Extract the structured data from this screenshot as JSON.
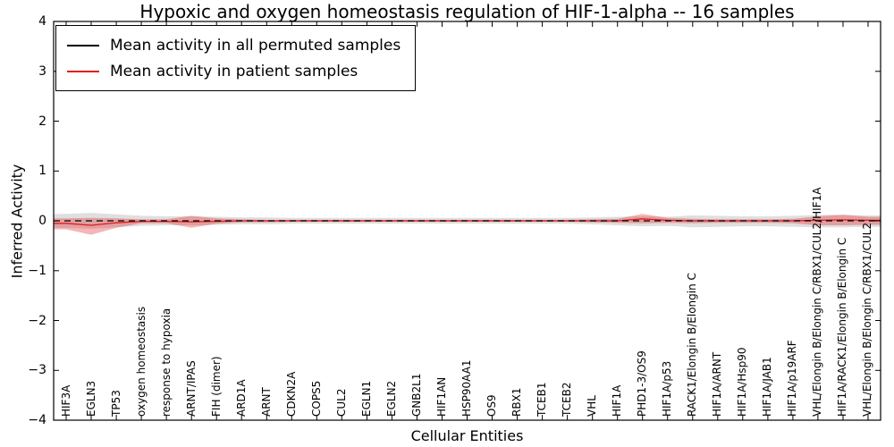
{
  "figure": {
    "title": "Hypoxic and oxygen homeostasis regulation of HIF-1-alpha -- 16 samples",
    "xlabel": "Cellular Entities",
    "ylabel": "Inferred Activity"
  },
  "legend": {
    "items": [
      {
        "label": "Mean activity in all permuted samples",
        "color": "#000000"
      },
      {
        "label": "Mean activity in patient samples",
        "color": "#e31a1c"
      }
    ]
  },
  "chart_data": {
    "type": "line",
    "title": "Hypoxic and oxygen homeostasis regulation of HIF-1-alpha -- 16 samples",
    "xlabel": "Cellular Entities",
    "ylabel": "Inferred Activity",
    "ylim": [
      -4,
      4
    ],
    "yticks": [
      -4,
      -3,
      -2,
      -1,
      0,
      1,
      2,
      3,
      4
    ],
    "grid": false,
    "legend_position": "upper left",
    "categories": [
      "HIF3A",
      "EGLN3",
      "TP53",
      "oxygen homeostasis",
      "response to hypoxia",
      "ARNT/IPAS",
      "FIH (dimer)",
      "ARD1A",
      "ARNT",
      "CDKN2A",
      "COPS5",
      "CUL2",
      "EGLN1",
      "EGLN2",
      "GNB2L1",
      "HIF1AN",
      "HSP90AA1",
      "OS9",
      "RBX1",
      "TCEB1",
      "TCEB2",
      "VHL",
      "HIF1A",
      "PHD1-3/OS9",
      "HIF1A/p53",
      "RACK1/Elongin B/Elongin C",
      "HIF1A/ARNT",
      "HIF1A/Hsp90",
      "HIF1A/JAB1",
      "HIF1A/p19ARF",
      "VHL/Elongin B/Elongin C/RBX1/CUL2/HIF1A",
      "HIF1A/RACK1/Elongin B/Elongin C",
      "VHL/Elongin B/Elongin C/RBX1/CUL2"
    ],
    "series": [
      {
        "name": "Mean activity in all permuted samples",
        "color": "#000000",
        "style": "dashed",
        "values": [
          0,
          0,
          0,
          0,
          0,
          0,
          0,
          0,
          0,
          0,
          0,
          0,
          0,
          0,
          0,
          0,
          0,
          0,
          0,
          0,
          0,
          0,
          0,
          0,
          0,
          0,
          0,
          0,
          0,
          0,
          0,
          0,
          0
        ]
      },
      {
        "name": "Mean activity in patient samples",
        "color": "#e31a1c",
        "style": "solid",
        "values": [
          -0.05,
          -0.09,
          -0.04,
          -0.01,
          -0.01,
          -0.02,
          -0.01,
          0,
          0,
          0,
          0,
          0,
          0,
          0,
          0,
          0,
          0,
          0,
          0,
          0,
          0,
          0,
          0,
          0.04,
          0.01,
          0,
          0,
          0,
          0,
          0,
          0.01,
          0.02,
          0.01
        ]
      }
    ],
    "bands": [
      {
        "name": "Permuted samples activity range",
        "color": "rgba(128,128,128,0.25)",
        "upper": [
          0.14,
          0.16,
          0.13,
          0.1,
          0.09,
          0.09,
          0.08,
          0.07,
          0.07,
          0.06,
          0.06,
          0.06,
          0.06,
          0.06,
          0.06,
          0.06,
          0.06,
          0.06,
          0.06,
          0.06,
          0.06,
          0.07,
          0.08,
          0.09,
          0.08,
          0.11,
          0.1,
          0.09,
          0.09,
          0.1,
          0.12,
          0.12,
          0.11
        ],
        "lower": [
          -0.14,
          -0.16,
          -0.13,
          -0.1,
          -0.09,
          -0.09,
          -0.08,
          -0.07,
          -0.07,
          -0.06,
          -0.06,
          -0.06,
          -0.06,
          -0.06,
          -0.06,
          -0.06,
          -0.06,
          -0.06,
          -0.06,
          -0.06,
          -0.06,
          -0.07,
          -0.09,
          -0.11,
          -0.1,
          -0.13,
          -0.12,
          -0.11,
          -0.11,
          -0.12,
          -0.13,
          -0.13,
          -0.12
        ]
      },
      {
        "name": "Patient samples activity range",
        "color": "rgba(227,26,28,0.32)",
        "upper": [
          0.05,
          0.06,
          0.05,
          0.03,
          0.03,
          0.1,
          0.05,
          0.03,
          0.02,
          0.02,
          0.02,
          0.02,
          0.02,
          0.02,
          0.02,
          0.02,
          0.02,
          0.02,
          0.02,
          0.02,
          0.02,
          0.03,
          0.04,
          0.14,
          0.06,
          0.04,
          0.03,
          0.03,
          0.03,
          0.04,
          0.09,
          0.12,
          0.08
        ],
        "lower": [
          -0.17,
          -0.28,
          -0.14,
          -0.05,
          -0.05,
          -0.14,
          -0.06,
          -0.03,
          -0.03,
          -0.02,
          -0.02,
          -0.02,
          -0.02,
          -0.02,
          -0.02,
          -0.02,
          -0.02,
          -0.02,
          -0.02,
          -0.02,
          -0.02,
          -0.03,
          -0.04,
          -0.05,
          -0.04,
          -0.05,
          -0.04,
          -0.04,
          -0.04,
          -0.05,
          -0.09,
          -0.09,
          -0.08
        ]
      }
    ]
  }
}
